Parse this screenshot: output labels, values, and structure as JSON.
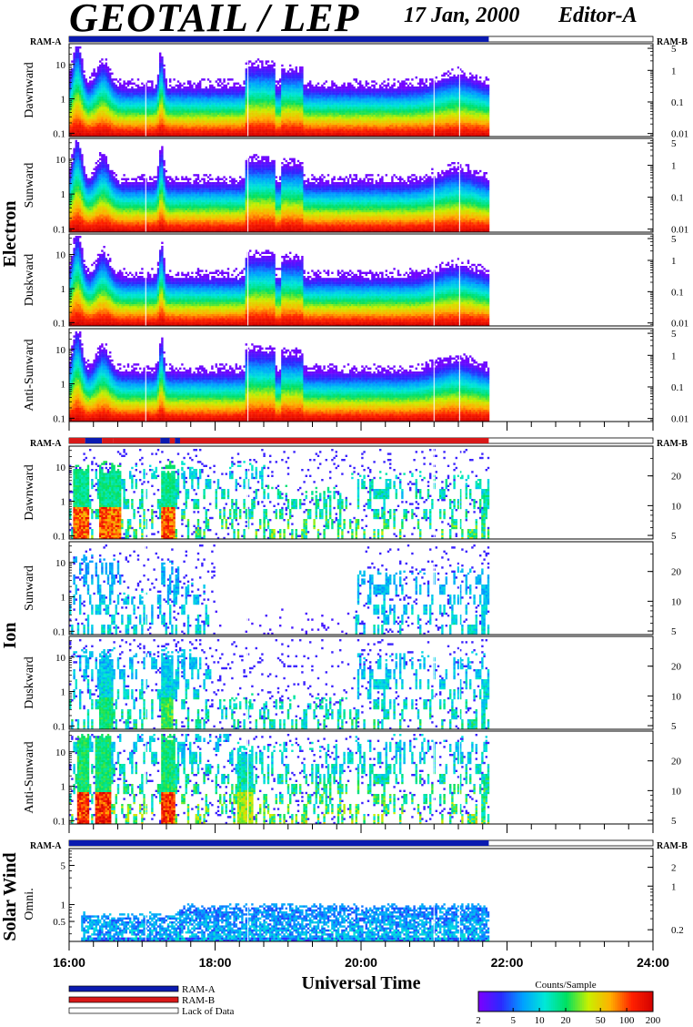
{
  "header": {
    "title": "GEOTAIL / LEP",
    "date": "17 Jan, 2000",
    "editor": "Editor-A"
  },
  "colors": {
    "ram_a": "#0a1ab0",
    "ram_b": "#d81818",
    "lack_of_data": "#ffffff",
    "colorbar_stops": [
      "#7a00ff",
      "#2a2aff",
      "#00a0ff",
      "#00e8d8",
      "#00e060",
      "#c8f000",
      "#ffb000",
      "#ff2000",
      "#d00000"
    ]
  },
  "legend": {
    "ram_a": "RAM-A",
    "ram_b": "RAM-B",
    "lack": "Lack of Data"
  },
  "colorbar": {
    "title": "Counts/Sample",
    "ticks": [
      "2",
      "5",
      "10",
      "20",
      "50",
      "100",
      "200"
    ],
    "tick_values": [
      2,
      5,
      10,
      20,
      50,
      100,
      200
    ],
    "range": [
      2,
      200
    ],
    "scale": "log"
  },
  "chart_data": {
    "type": "heatmap",
    "description_kind": "energy-time spectrograms",
    "xlabel": "Universal Time",
    "x_range_hours": [
      16,
      24
    ],
    "x_tick_labels": [
      "16:00",
      "18:00",
      "20:00",
      "22:00",
      "24:00"
    ],
    "data_end_hour": 21.75,
    "groups": [
      {
        "name": "Electron",
        "mode_left": "RAM-A",
        "mode_right": "RAM-B",
        "mode_strip": [
          {
            "from": 16.0,
            "to": 21.75,
            "mode": "ram_a"
          }
        ],
        "left_ticks": [
          "10",
          "1",
          "0.1"
        ],
        "left_tick_values": [
          10,
          1,
          0.1
        ],
        "left_range": [
          0.08,
          40
        ],
        "right_ticks": [
          "5",
          "1",
          "0.1",
          "0.01"
        ],
        "right_tick_values": [
          5,
          1,
          0.1,
          0.01
        ],
        "right_range": [
          0.008,
          7
        ],
        "panels": [
          {
            "label": "Dawnward",
            "kind": "electron",
            "seed": 11
          },
          {
            "label": "Sunward",
            "kind": "electron",
            "seed": 23
          },
          {
            "label": "Duskward",
            "kind": "electron",
            "seed": 37
          },
          {
            "label": "Anti-Sunward",
            "kind": "electron",
            "seed": 51
          }
        ]
      },
      {
        "name": "Ion",
        "mode_left": "RAM-A",
        "mode_right": "RAM-B",
        "mode_strip": [
          {
            "from": 16.0,
            "to": 16.22,
            "mode": "ram_b"
          },
          {
            "from": 16.22,
            "to": 16.45,
            "mode": "ram_a"
          },
          {
            "from": 16.45,
            "to": 16.6,
            "mode": "ram_b"
          },
          {
            "from": 16.6,
            "to": 17.25,
            "mode": "ram_b"
          },
          {
            "from": 17.25,
            "to": 17.38,
            "mode": "ram_a"
          },
          {
            "from": 17.38,
            "to": 17.45,
            "mode": "ram_b"
          },
          {
            "from": 17.45,
            "to": 17.52,
            "mode": "ram_a"
          },
          {
            "from": 17.52,
            "to": 21.75,
            "mode": "ram_b"
          }
        ],
        "left_ticks": [
          "10",
          "1",
          "0.1"
        ],
        "left_tick_values": [
          10,
          1,
          0.1
        ],
        "left_range": [
          0.08,
          40
        ],
        "right_ticks": [
          "20",
          "10",
          "5"
        ],
        "right_tick_values": [
          20,
          10,
          5
        ],
        "right_range": [
          4.6,
          40
        ],
        "panels": [
          {
            "label": "Dawnward",
            "kind": "ion_dawn",
            "seed": 67
          },
          {
            "label": "Sunward",
            "kind": "ion_sun",
            "seed": 79
          },
          {
            "label": "Duskward",
            "kind": "ion_dusk",
            "seed": 83
          },
          {
            "label": "Anti-Sunward",
            "kind": "ion_anti",
            "seed": 97
          }
        ]
      },
      {
        "name": "Solar Wind",
        "mode_left": "RAM-A",
        "mode_right": "RAM-B",
        "mode_strip": [
          {
            "from": 16.0,
            "to": 21.75,
            "mode": "ram_a"
          }
        ],
        "left_ticks": [
          "5",
          "1",
          "0.5"
        ],
        "left_tick_values": [
          5,
          1,
          0.5
        ],
        "left_range": [
          0.22,
          10
        ],
        "right_ticks": [
          "2",
          "1",
          "0.2"
        ],
        "right_tick_values": [
          2,
          1,
          0.2
        ],
        "right_range": [
          0.13,
          4
        ],
        "panels": [
          {
            "label": "Omni.",
            "kind": "solarwind",
            "seed": 101
          }
        ]
      }
    ]
  }
}
